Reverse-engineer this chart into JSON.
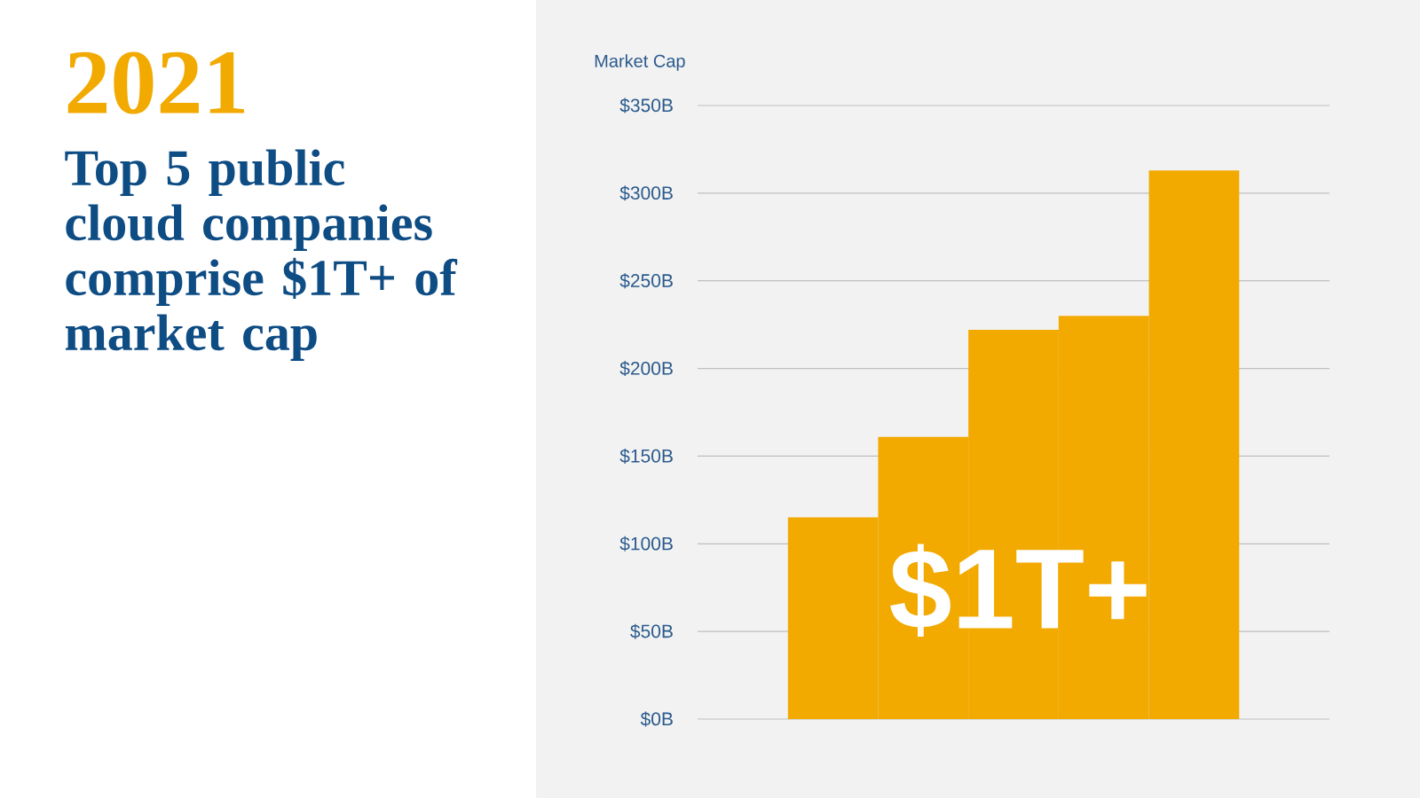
{
  "chart_data": {
    "type": "bar",
    "title": "2021",
    "subtitle": "Top 5 public cloud companies comprise $1T+ of market cap",
    "ylabel": "Market Cap",
    "categories": [
      null,
      null,
      null,
      null,
      null
    ],
    "values": [
      115,
      161,
      222,
      230,
      313
    ],
    "color": "#f2a900",
    "ylim": [
      0,
      350
    ],
    "yticks": [
      {
        "value": 0,
        "label": "$0B"
      },
      {
        "value": 50,
        "label": "$50B"
      },
      {
        "value": 100,
        "label": "$100B"
      },
      {
        "value": 150,
        "label": "$150B"
      },
      {
        "value": 200,
        "label": "$200B"
      },
      {
        "value": 250,
        "label": "$250B"
      },
      {
        "value": 300,
        "label": "$300B"
      },
      {
        "value": 350,
        "label": "$350B"
      }
    ],
    "grid": "y",
    "annotations": [
      "$1T+"
    ]
  }
}
